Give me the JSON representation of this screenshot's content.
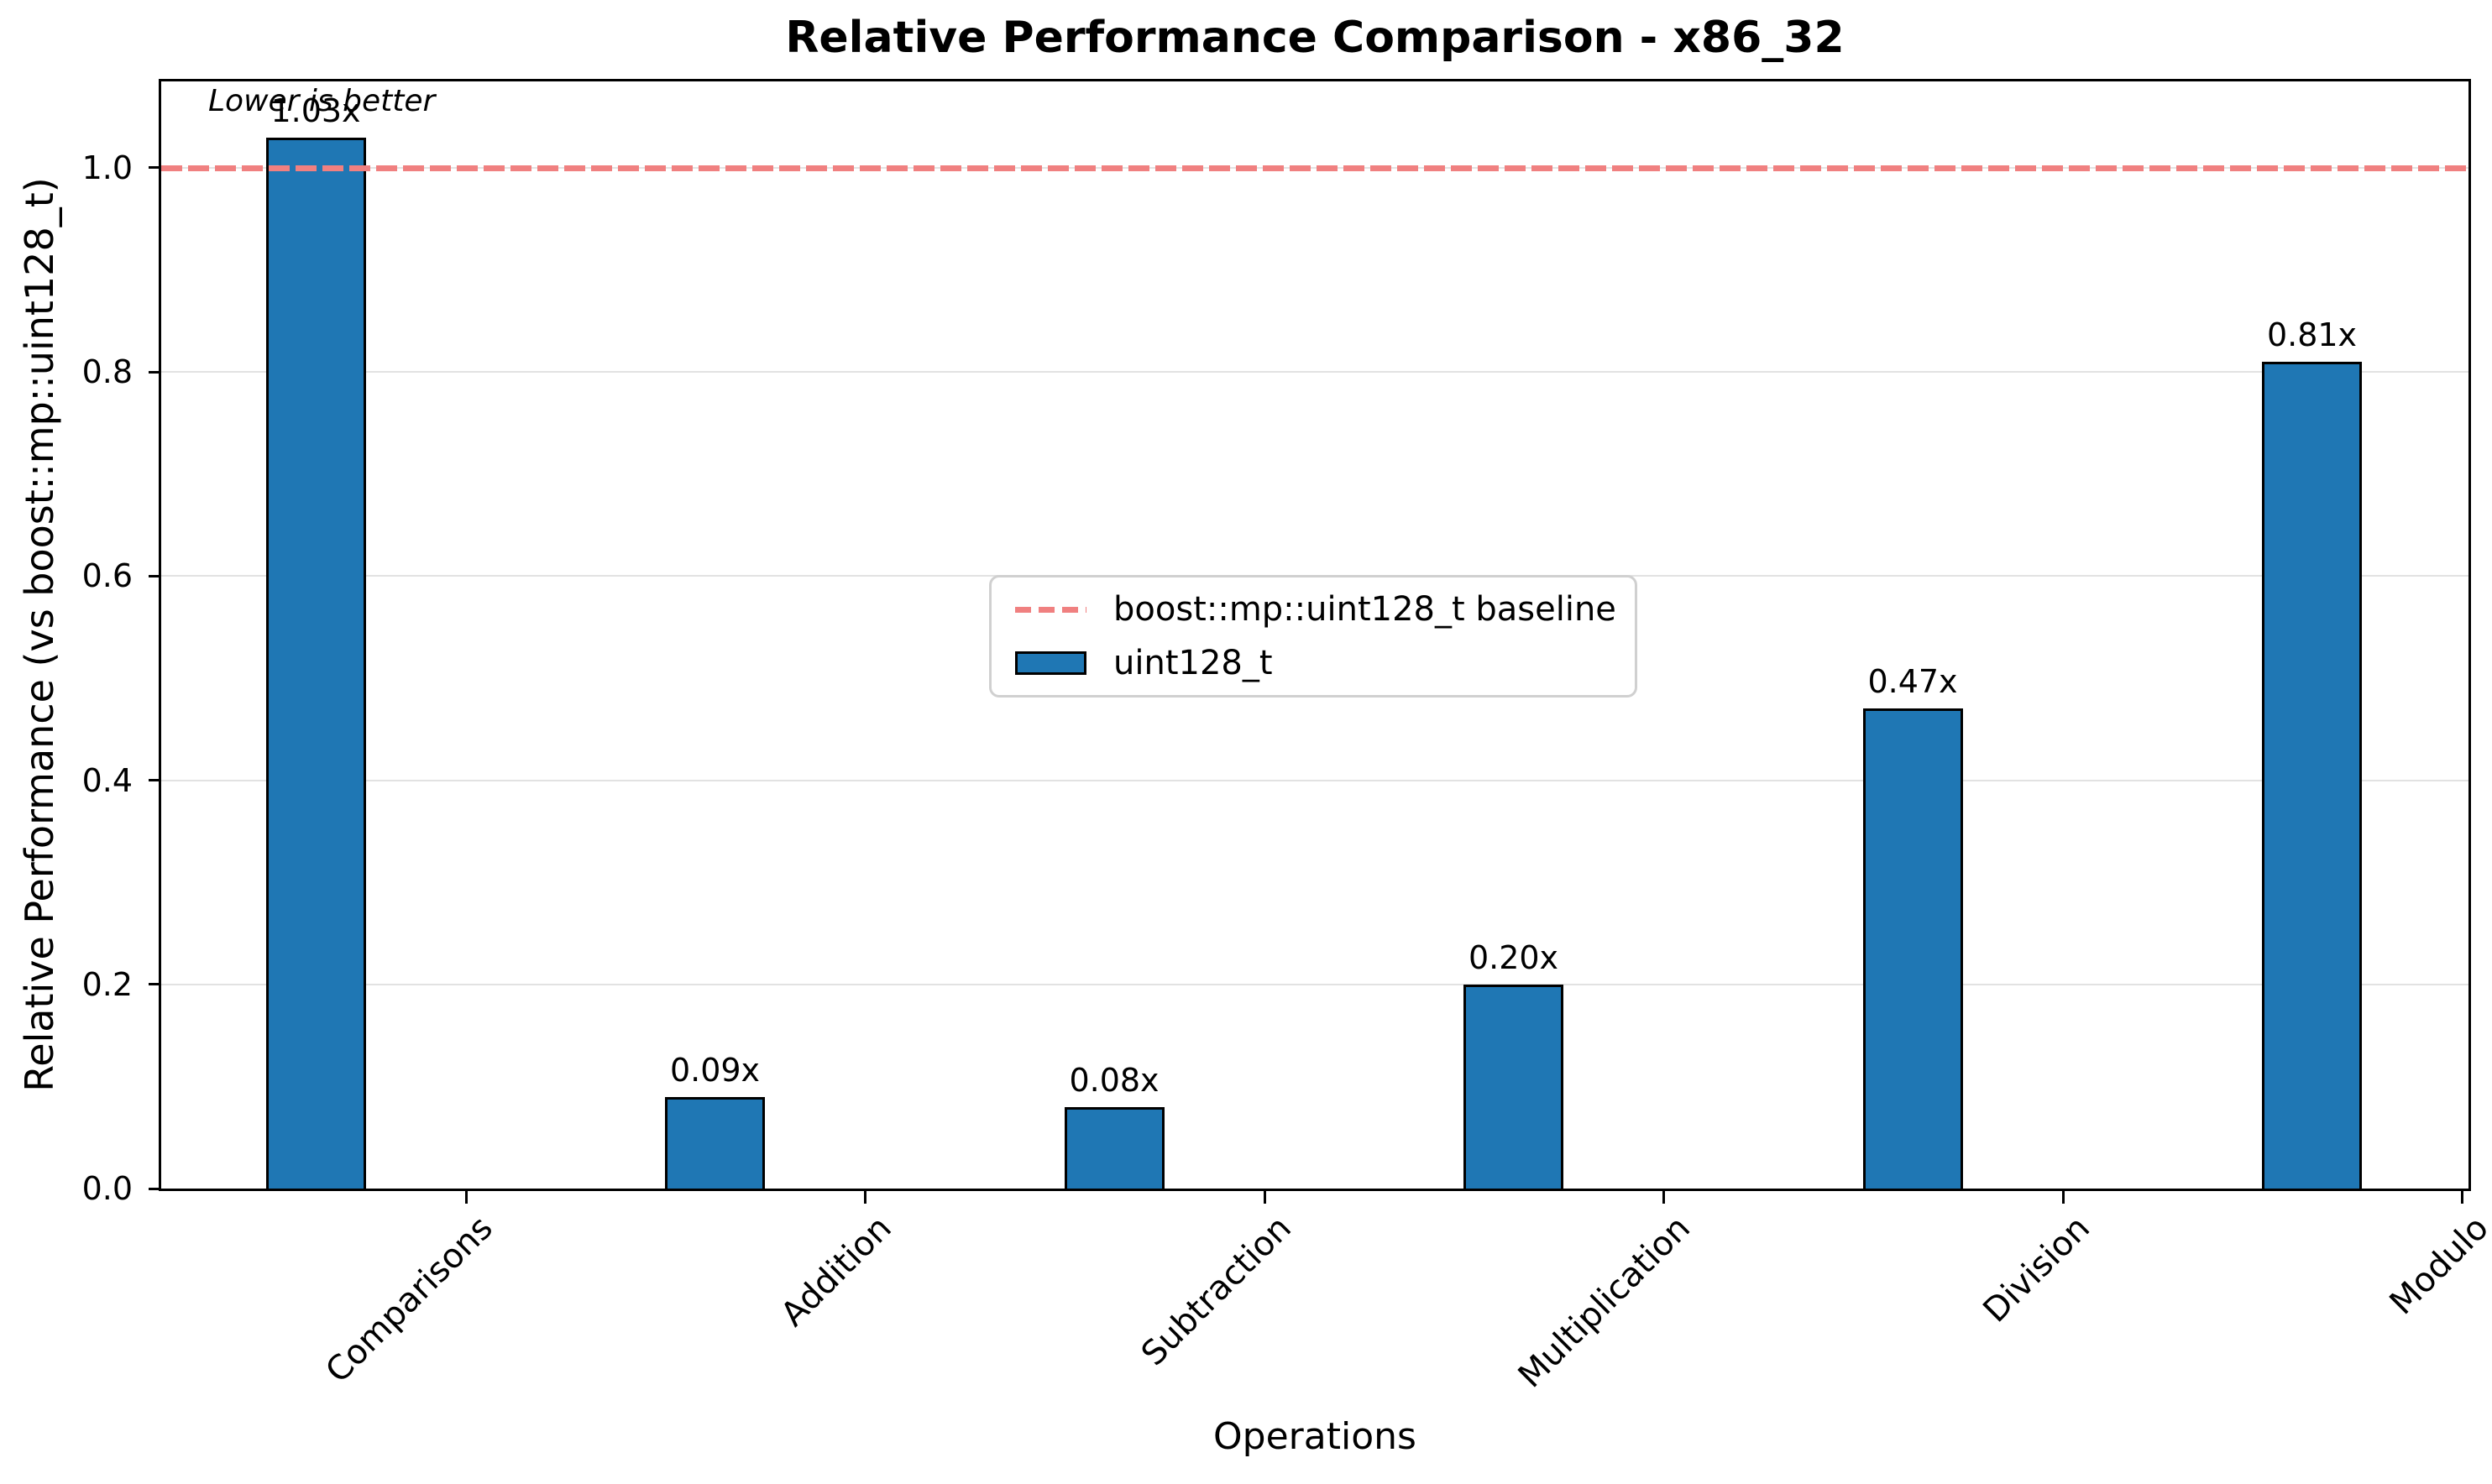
{
  "chart_data": {
    "type": "bar",
    "title": "Relative Performance Comparison - x86_32",
    "xlabel": "Operations",
    "ylabel": "Relative Performance (vs boost::mp::uint128_t)",
    "annotation": "Lower is better",
    "categories": [
      "Comparisons",
      "Addition",
      "Subtraction",
      "Multiplication",
      "Division",
      "Modulo"
    ],
    "series": [
      {
        "name": "uint128_t",
        "values": [
          1.03,
          0.09,
          0.08,
          0.2,
          0.47,
          0.81
        ]
      }
    ],
    "bar_value_labels": [
      "1.03x",
      "0.09x",
      "0.08x",
      "0.20x",
      "0.47x",
      "0.81x"
    ],
    "yticks": [
      "0.0",
      "0.2",
      "0.4",
      "0.6",
      "0.8",
      "1.0"
    ],
    "ylim": [
      0,
      1.085
    ],
    "grid": "horizontal-only",
    "baseline": {
      "value": 1.0,
      "label": "boost::mp::uint128_t baseline",
      "style": "dashed"
    },
    "legend": {
      "position": "upper-center-inside",
      "entries": [
        {
          "label": "boost::mp::uint128_t baseline",
          "marker": "dashed-line",
          "color": "#f08080"
        },
        {
          "label": "uint128_t",
          "marker": "filled-box",
          "color": "#1f77b4"
        }
      ]
    },
    "colors": {
      "bar_fill": "#1f77b4",
      "bar_edge": "#000000",
      "baseline_dash": "#f08080",
      "gridline": "#e2e2e2"
    }
  }
}
